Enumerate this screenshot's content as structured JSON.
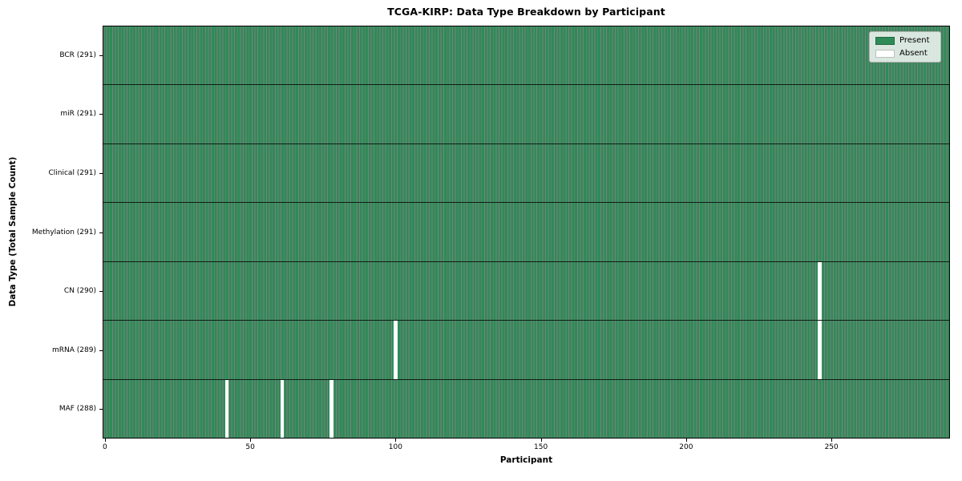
{
  "chart_data": {
    "type": "heatmap",
    "title": "TCGA-KIRP: Data Type Breakdown by Participant",
    "xlabel": "Participant",
    "ylabel": "Data Type (Total Sample Count)",
    "x_ticks": [
      0,
      50,
      100,
      150,
      200,
      250
    ],
    "x_range": [
      0,
      290
    ],
    "n_participants": 291,
    "grid": false,
    "legend_position": "upper right",
    "rows": [
      {
        "label": "BCR (291)",
        "data_type": "BCR",
        "present_count": 291,
        "absent_participants": []
      },
      {
        "label": "miR (291)",
        "data_type": "miR",
        "present_count": 291,
        "absent_participants": []
      },
      {
        "label": "Clinical (291)",
        "data_type": "Clinical",
        "present_count": 291,
        "absent_participants": []
      },
      {
        "label": "Methylation (291)",
        "data_type": "Methylation",
        "present_count": 291,
        "absent_participants": []
      },
      {
        "label": "CN (290)",
        "data_type": "CN",
        "present_count": 290,
        "absent_participants": [
          246
        ]
      },
      {
        "label": "mRNA (289)",
        "data_type": "mRNA",
        "present_count": 289,
        "absent_participants": [
          100,
          246
        ]
      },
      {
        "label": "MAF (288)",
        "data_type": "MAF",
        "present_count": 288,
        "absent_participants": [
          42,
          61,
          78
        ]
      }
    ],
    "legend": [
      {
        "label": "Present",
        "color": "#2e8b57"
      },
      {
        "label": "Absent",
        "color": "#ffffff"
      }
    ],
    "colors": {
      "present": "#2e8b57",
      "absent": "#ffffff",
      "cell_edge": "rgba(0,0,0,0.5)",
      "row_divider": "rgba(0,0,0,0.78)",
      "spine": "#000000"
    }
  }
}
